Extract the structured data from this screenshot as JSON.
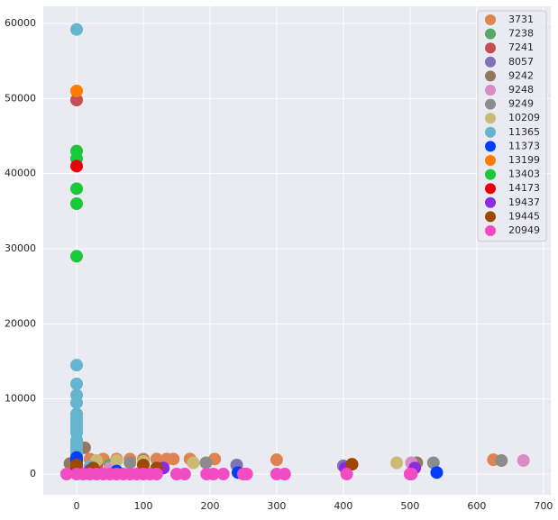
{
  "chart_data": {
    "type": "scatter",
    "xlim": [
      -50,
      711
    ],
    "ylim": [
      -2760,
      62280
    ],
    "xticks": [
      0,
      100,
      200,
      300,
      400,
      500,
      600,
      700
    ],
    "yticks": [
      0,
      10000,
      20000,
      30000,
      40000,
      50000,
      60000
    ],
    "grid": true,
    "legend": "upper right",
    "series": [
      {
        "name": "3731",
        "color": "#dd8452",
        "x": [
          20,
          40,
          60,
          80,
          100,
          120,
          135,
          145,
          170,
          207,
          300,
          625
        ],
        "values": [
          2000,
          2000,
          2000,
          2000,
          2000,
          2000,
          2000,
          2000,
          2000,
          2000,
          1900,
          1900
        ]
      },
      {
        "name": "7238",
        "color": "#55a868",
        "x": [
          0,
          50
        ],
        "values": [
          1500,
          1200
        ]
      },
      {
        "name": "7241",
        "color": "#c44e52",
        "x": [
          0,
          30
        ],
        "values": [
          49800,
          1000
        ]
      },
      {
        "name": "8057",
        "color": "#8172b3",
        "x": [
          0,
          130,
          240,
          400,
          505
        ],
        "values": [
          1800,
          800,
          1200,
          1100,
          900
        ]
      },
      {
        "name": "9242",
        "color": "#937860",
        "x": [
          -10,
          12,
          100,
          510
        ],
        "values": [
          1400,
          3500,
          1800,
          1500
        ]
      },
      {
        "name": "9248",
        "color": "#da8bc3",
        "x": [
          50,
          502,
          670
        ],
        "values": [
          800,
          1500,
          1800
        ]
      },
      {
        "name": "9249",
        "color": "#8c8c8c",
        "x": [
          80,
          194,
          535,
          637
        ],
        "values": [
          1500,
          1500,
          1500,
          1800
        ]
      },
      {
        "name": "10209",
        "color": "#ccb974",
        "x": [
          30,
          60,
          100,
          175,
          480
        ],
        "values": [
          1800,
          1800,
          1700,
          1500,
          1500
        ]
      },
      {
        "name": "11365",
        "color": "#64b5cd",
        "x": [
          0,
          0,
          0,
          0,
          0,
          0,
          0,
          0,
          0,
          0,
          0,
          0,
          0,
          0,
          0,
          0,
          20
        ],
        "values": [
          59200,
          14500,
          12000,
          10500,
          9500,
          8000,
          7500,
          7000,
          6500,
          6000,
          5500,
          4500,
          4000,
          3500,
          3000,
          2500,
          1000
        ]
      },
      {
        "name": "11373",
        "color": "#023eff",
        "x": [
          0,
          0,
          60,
          242,
          540
        ],
        "values": [
          2200,
          1800,
          400,
          200,
          200
        ]
      },
      {
        "name": "13199",
        "color": "#ff7c00",
        "x": [
          0,
          0
        ],
        "values": [
          51000,
          1200
        ]
      },
      {
        "name": "13403",
        "color": "#1ac938",
        "x": [
          0,
          0,
          0,
          0,
          0
        ],
        "values": [
          43000,
          42000,
          38000,
          36000,
          29000
        ]
      },
      {
        "name": "14173",
        "color": "#e8000b",
        "x": [
          0,
          0
        ],
        "values": [
          41000,
          800
        ]
      },
      {
        "name": "19437",
        "color": "#8b2be2",
        "x": [
          20,
          130,
          403,
          507
        ],
        "values": [
          500,
          800,
          800,
          800
        ]
      },
      {
        "name": "19445",
        "color": "#9f4800",
        "x": [
          0,
          25,
          100,
          120,
          413
        ],
        "values": [
          1200,
          800,
          1200,
          800,
          1300
        ]
      },
      {
        "name": "20949",
        "color": "#f14cc1",
        "x": [
          -15,
          0,
          10,
          20,
          30,
          40,
          50,
          60,
          70,
          80,
          90,
          100,
          110,
          120,
          150,
          162,
          195,
          205,
          220,
          250,
          255,
          300,
          312,
          405,
          500,
          502
        ],
        "values": [
          0,
          0,
          0,
          0,
          0,
          0,
          0,
          0,
          0,
          0,
          0,
          0,
          0,
          0,
          0,
          0,
          0,
          0,
          0,
          0,
          0,
          0,
          0,
          0,
          0,
          0
        ]
      }
    ]
  }
}
